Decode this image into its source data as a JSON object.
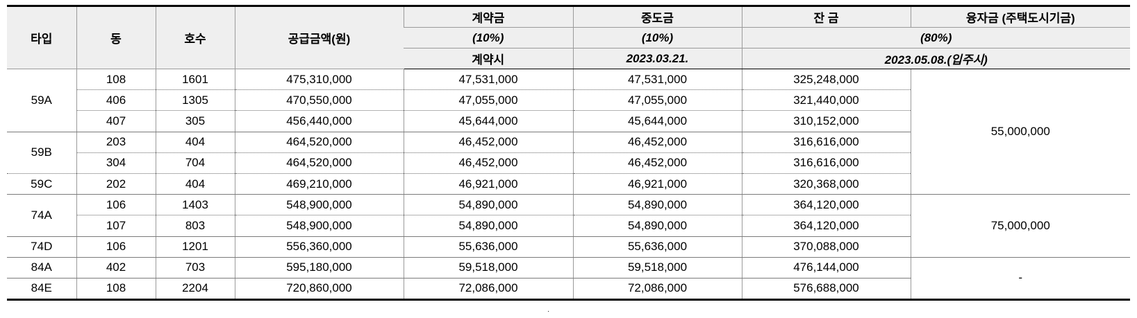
{
  "header": {
    "type": "타입",
    "dong": "동",
    "unit": "호수",
    "supply_price": "공급금액(원)",
    "deposit": {
      "label": "계약금",
      "pct": "(10%)",
      "date": "계약시"
    },
    "interim": {
      "label": "중도금",
      "pct": "(10%)",
      "date": "2023.03.21."
    },
    "balance": {
      "label": "잔 금"
    },
    "loan": {
      "label": "융자금 (주택도시기금)"
    },
    "balance_loan_pct": "(80%)",
    "balance_loan_date": "2023.05.08.(입주시)"
  },
  "rows": [
    {
      "dong": "108",
      "unit": "1601",
      "price": "475,310,000",
      "deposit": "47,531,000",
      "interim": "47,531,000",
      "balance": "325,248,000"
    },
    {
      "dong": "406",
      "unit": "1305",
      "price": "470,550,000",
      "deposit": "47,055,000",
      "interim": "47,055,000",
      "balance": "321,440,000"
    },
    {
      "dong": "407",
      "unit": "305",
      "price": "456,440,000",
      "deposit": "45,644,000",
      "interim": "45,644,000",
      "balance": "310,152,000"
    },
    {
      "dong": "203",
      "unit": "404",
      "price": "464,520,000",
      "deposit": "46,452,000",
      "interim": "46,452,000",
      "balance": "316,616,000"
    },
    {
      "dong": "304",
      "unit": "704",
      "price": "464,520,000",
      "deposit": "46,452,000",
      "interim": "46,452,000",
      "balance": "316,616,000"
    },
    {
      "dong": "202",
      "unit": "404",
      "price": "469,210,000",
      "deposit": "46,921,000",
      "interim": "46,921,000",
      "balance": "320,368,000"
    },
    {
      "dong": "106",
      "unit": "1403",
      "price": "548,900,000",
      "deposit": "54,890,000",
      "interim": "54,890,000",
      "balance": "364,120,000"
    },
    {
      "dong": "107",
      "unit": "803",
      "price": "548,900,000",
      "deposit": "54,890,000",
      "interim": "54,890,000",
      "balance": "364,120,000"
    },
    {
      "dong": "106",
      "unit": "1201",
      "price": "556,360,000",
      "deposit": "55,636,000",
      "interim": "55,636,000",
      "balance": "370,088,000"
    },
    {
      "dong": "402",
      "unit": "703",
      "price": "595,180,000",
      "deposit": "59,518,000",
      "interim": "59,518,000",
      "balance": "476,144,000"
    },
    {
      "dong": "108",
      "unit": "2204",
      "price": "720,860,000",
      "deposit": "72,086,000",
      "interim": "72,086,000",
      "balance": "576,688,000"
    }
  ],
  "types": [
    "59A",
    "59B",
    "59C",
    "74A",
    "74D",
    "84A",
    "84E"
  ],
  "loans": [
    "55,000,000",
    "75,000,000",
    "-"
  ],
  "footer_mark": "·"
}
